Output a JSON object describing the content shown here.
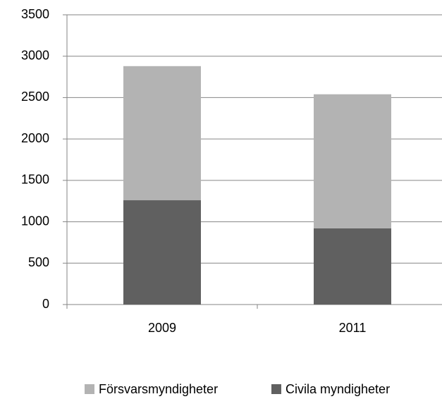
{
  "chart_data": {
    "type": "stacked_bar",
    "categories": [
      "2009",
      "2011"
    ],
    "series": [
      {
        "name": "Civila myndigheter",
        "color": "#606060",
        "values": [
          1260,
          920
        ]
      },
      {
        "name": "Försvarsmyndigheter",
        "color": "#b3b3b3",
        "values": [
          1620,
          1620
        ]
      }
    ],
    "ylim": [
      0,
      3500
    ],
    "yticks": [
      0,
      500,
      1000,
      1500,
      2000,
      2500,
      3000,
      3500
    ],
    "grid": true,
    "legend": "bottom"
  }
}
